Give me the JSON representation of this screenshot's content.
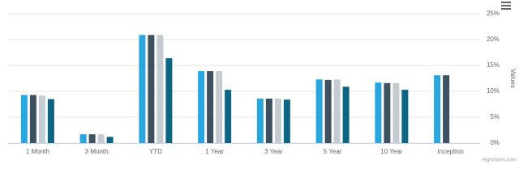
{
  "chart_data": {
    "type": "bar",
    "y_axis_label": "Values",
    "credit": "Highcharts.com",
    "categories": [
      "1 Month",
      "3 Month",
      "YTD",
      "1 Year",
      "3 Year",
      "5 Year",
      "10 Year",
      "Inception"
    ],
    "series": [
      {
        "color": "#2aa6df",
        "values": [
          9.3,
          1.7,
          20.9,
          13.9,
          8.6,
          12.3,
          11.7,
          13.1
        ]
      },
      {
        "color": "#3d5161",
        "values": [
          9.3,
          1.7,
          20.9,
          13.9,
          8.6,
          12.2,
          11.6,
          13.1
        ]
      },
      {
        "color": "#c5ccd1",
        "values": [
          9.2,
          1.7,
          20.9,
          13.9,
          8.6,
          12.3,
          11.6,
          null
        ]
      },
      {
        "color": "#0d6584",
        "values": [
          8.5,
          1.2,
          16.4,
          10.3,
          8.4,
          10.9,
          10.3,
          null
        ]
      }
    ],
    "ylim": [
      0,
      25
    ],
    "yticks": [
      {
        "value": 0,
        "label": "0%"
      },
      {
        "value": 5,
        "label": "5%"
      },
      {
        "value": 10,
        "label": "10%"
      },
      {
        "value": 15,
        "label": "15%"
      },
      {
        "value": 20,
        "label": "20%"
      },
      {
        "value": 25,
        "label": "25%"
      }
    ],
    "grid": true,
    "y_axis_side": "right"
  }
}
